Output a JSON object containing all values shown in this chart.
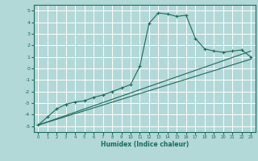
{
  "xlabel": "Humidex (Indice chaleur)",
  "bg_color": "#b2d8d8",
  "grid_color": "#ffffff",
  "line_color": "#1a6b5a",
  "xlim": [
    -0.5,
    23.5
  ],
  "ylim": [
    -5.5,
    5.5
  ],
  "xticks": [
    0,
    1,
    2,
    3,
    4,
    5,
    6,
    7,
    8,
    9,
    10,
    11,
    12,
    13,
    14,
    15,
    16,
    17,
    18,
    19,
    20,
    21,
    22,
    23
  ],
  "yticks": [
    -5,
    -4,
    -3,
    -2,
    -1,
    0,
    1,
    2,
    3,
    4,
    5
  ],
  "curve_x": [
    0,
    1,
    2,
    3,
    4,
    5,
    6,
    7,
    8,
    9,
    10,
    11,
    12,
    13,
    14,
    15,
    16,
    17,
    18,
    19,
    20,
    21,
    22,
    23
  ],
  "curve_y": [
    -4.9,
    -4.2,
    -3.5,
    -3.1,
    -2.9,
    -2.8,
    -2.5,
    -2.3,
    -2.0,
    -1.7,
    -1.4,
    0.2,
    3.9,
    4.8,
    4.7,
    4.5,
    4.6,
    2.6,
    1.7,
    1.5,
    1.4,
    1.5,
    1.6,
    1.0
  ],
  "line1_x": [
    0,
    23
  ],
  "line1_y": [
    -4.9,
    0.8
  ],
  "line2_x": [
    0,
    23
  ],
  "line2_y": [
    -4.9,
    1.5
  ],
  "marker": "+"
}
